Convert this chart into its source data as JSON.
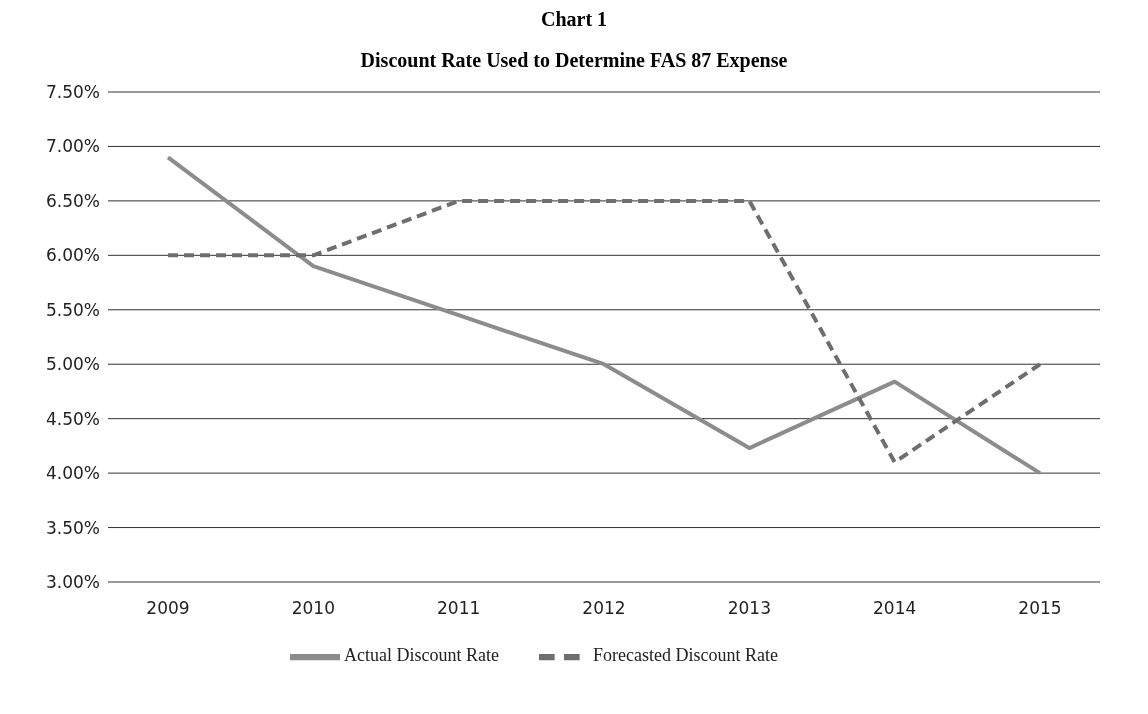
{
  "chart_data": {
    "type": "line",
    "title": "Chart 1",
    "subtitle": "Discount Rate Used to Determine FAS 87 Expense",
    "categories": [
      "2009",
      "2010",
      "2011",
      "2012",
      "2013",
      "2014",
      "2015"
    ],
    "series": [
      {
        "name": "Actual Discount Rate",
        "color": "#8c8c8c",
        "line_style": "solid",
        "values": [
          6.9,
          5.9,
          5.45,
          5.0,
          4.23,
          4.84,
          4.0
        ]
      },
      {
        "name": "Forecasted Discount Rate",
        "color": "#6e6e6e",
        "line_style": "dashed",
        "values": [
          6.0,
          6.0,
          6.5,
          6.5,
          6.5,
          4.1,
          5.0
        ]
      }
    ],
    "ylim": [
      3,
      7.5
    ],
    "yticks": [
      {
        "value": 3,
        "label": "3.00%"
      },
      {
        "value": 3.5,
        "label": "3.50%"
      },
      {
        "value": 4,
        "label": "4.00%"
      },
      {
        "value": 4.5,
        "label": "4.50%"
      },
      {
        "value": 5,
        "label": "5.00%"
      },
      {
        "value": 5.5,
        "label": "5.50%"
      },
      {
        "value": 6,
        "label": "6.00%"
      },
      {
        "value": 6.5,
        "label": "6.50%"
      },
      {
        "value": 7,
        "label": "7.00%"
      },
      {
        "value": 7.5,
        "label": "7.50%"
      }
    ],
    "grid": "y",
    "legend": "bottom",
    "marker": "none"
  }
}
